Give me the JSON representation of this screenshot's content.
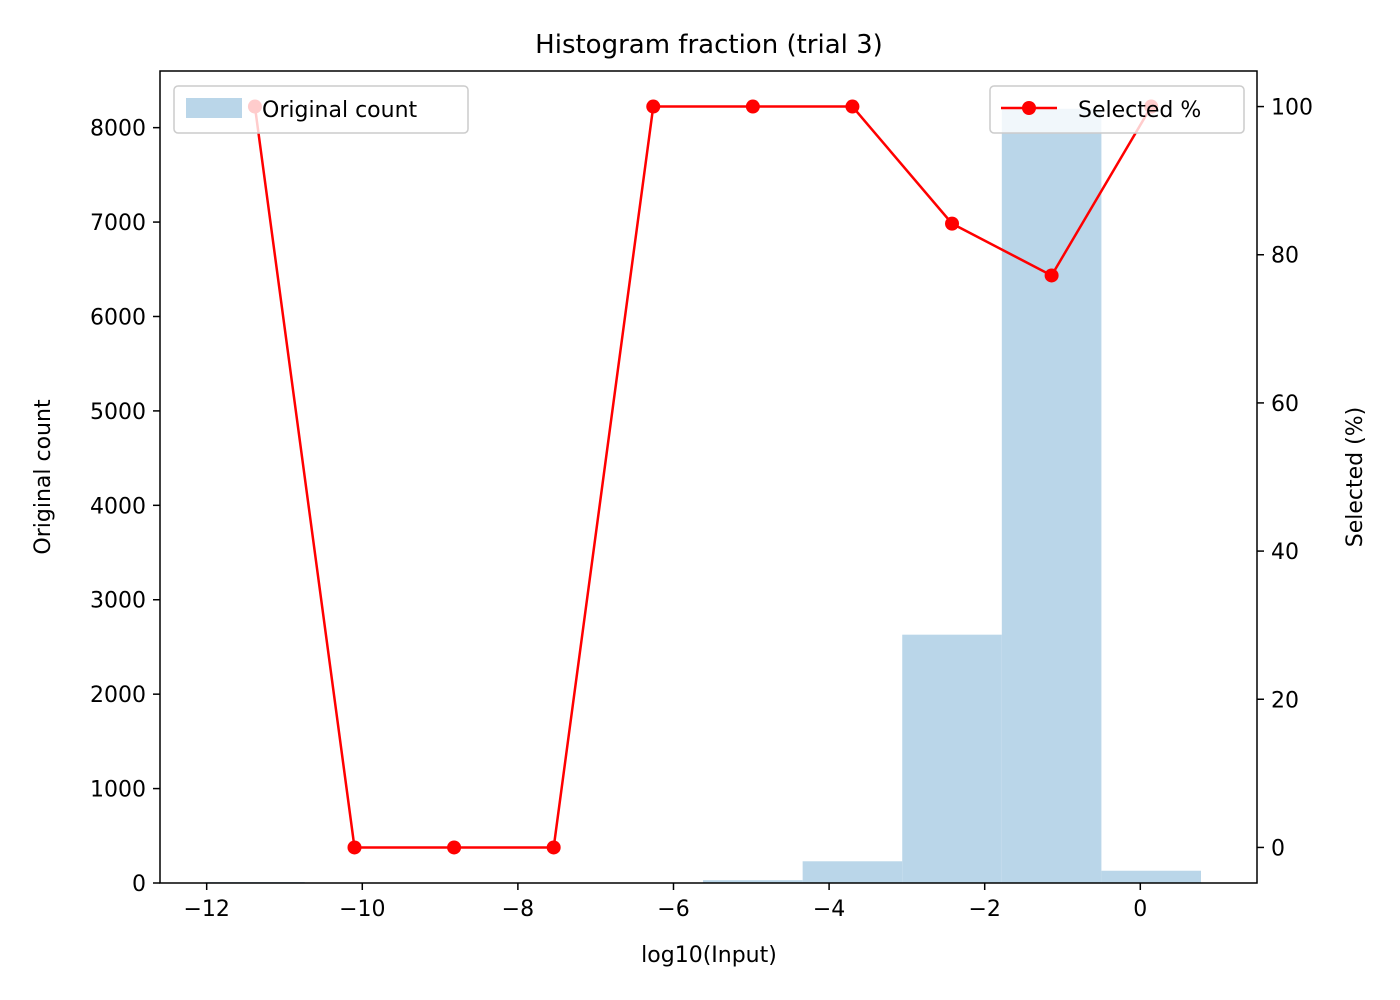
{
  "chart_data": {
    "type": "bar",
    "title": "Histogram fraction (trial 3)",
    "xlabel": "log10(Input)",
    "ylabel_left": "Original count",
    "ylabel_right": "Selected (%)",
    "xlim": [
      -12.6,
      1.5
    ],
    "ylim_left": [
      0,
      8600
    ],
    "ylim_right": [
      -4.8,
      104.8
    ],
    "x_ticks": [
      -12,
      -10,
      -8,
      -6,
      -4,
      -2,
      0
    ],
    "y_ticks_left": [
      0,
      1000,
      2000,
      3000,
      4000,
      5000,
      6000,
      7000,
      8000
    ],
    "y_ticks_right": [
      0,
      20,
      40,
      60,
      80,
      100
    ],
    "bar_color": "#bad6e9",
    "line_color": "#ff0000",
    "bin_edges": [
      -12.02,
      -10.74,
      -9.46,
      -8.18,
      -6.9,
      -5.62,
      -4.34,
      -3.06,
      -1.78,
      -0.5,
      0.78
    ],
    "series": [
      {
        "name": "Original count",
        "type": "bar",
        "values": [
          10,
          0,
          0,
          0,
          0,
          30,
          230,
          2630,
          8200,
          130
        ]
      },
      {
        "name": "Selected %",
        "type": "line",
        "x": [
          -11.38,
          -10.1,
          -8.82,
          -7.54,
          -6.26,
          -4.98,
          -3.7,
          -2.42,
          -1.14,
          0.14
        ],
        "values": [
          100,
          0,
          0,
          0,
          100,
          100,
          100,
          84.2,
          77.2,
          100
        ]
      }
    ],
    "legend": [
      {
        "label": "Original count",
        "placement": "top-left"
      },
      {
        "label": "Selected %",
        "placement": "top-right"
      }
    ]
  }
}
